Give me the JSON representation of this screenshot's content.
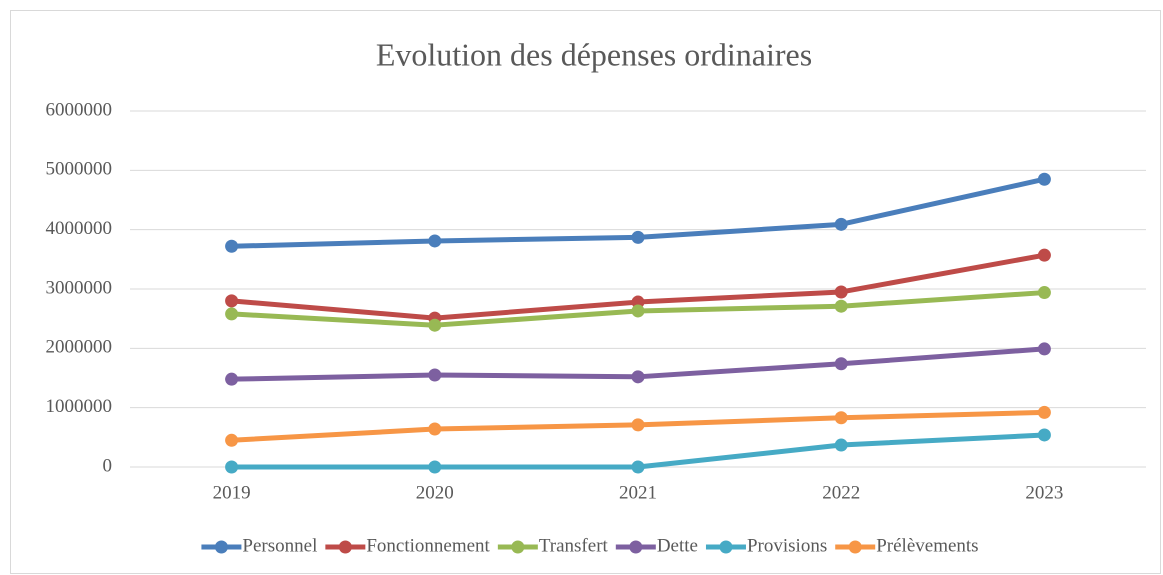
{
  "chart_data": {
    "type": "line",
    "title": "Evolution des dépenses ordinaires",
    "categories": [
      "2019",
      "2020",
      "2021",
      "2022",
      "2023"
    ],
    "series": [
      {
        "name": "Personnel",
        "color": "#4a7ebb",
        "values": [
          3720000,
          3810000,
          3870000,
          4090000,
          4850000
        ]
      },
      {
        "name": "Fonctionnement",
        "color": "#be4b48",
        "values": [
          2800000,
          2510000,
          2780000,
          2950000,
          3570000
        ]
      },
      {
        "name": "Transfert",
        "color": "#98b954",
        "values": [
          2580000,
          2390000,
          2630000,
          2710000,
          2940000
        ]
      },
      {
        "name": "Dette",
        "color": "#7d60a0",
        "values": [
          1480000,
          1550000,
          1520000,
          1740000,
          1990000
        ]
      },
      {
        "name": "Provisions",
        "color": "#46aac5",
        "values": [
          0,
          0,
          0,
          370000,
          540000
        ]
      },
      {
        "name": "Prélèvements",
        "color": "#f79646",
        "values": [
          450000,
          640000,
          710000,
          830000,
          920000
        ]
      }
    ],
    "ylim": [
      0,
      6000000
    ],
    "yticks": [
      0,
      1000000,
      2000000,
      3000000,
      4000000,
      5000000,
      6000000
    ],
    "grid": true,
    "legend": "bottom"
  }
}
